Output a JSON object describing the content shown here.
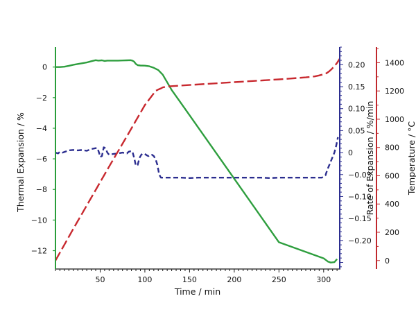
{
  "chart_data": {
    "type": "line",
    "x_axis": {
      "label": "Time / min",
      "range": [
        0,
        318
      ],
      "ticks": [
        50,
        100,
        150,
        200,
        250,
        300
      ],
      "minor_step": 5,
      "color": "#1a1a1a"
    },
    "y_axes": [
      {
        "id": "expansion",
        "label": "Thermal Expansion / %",
        "side": "left",
        "range": [
          -13.2,
          1.3
        ],
        "ticks": [
          0,
          -2,
          -4,
          -6,
          -8,
          -10,
          -12
        ],
        "color": "#2a9d3a"
      },
      {
        "id": "rate",
        "label": "Rate of Expansion / %/min",
        "side": "right",
        "range": [
          -0.265,
          0.24
        ],
        "ticks": [
          0.2,
          0.15,
          0.1,
          0.05,
          0,
          -0.05,
          -0.1,
          -0.15,
          -0.2
        ],
        "tick_labels": [
          "0.20",
          "0.15",
          "0.10",
          "0.05",
          "0",
          "-0.05",
          "-0.10",
          "-0.15",
          "-0.20"
        ],
        "minor_step": 0.01,
        "color": "#2b2d8f"
      },
      {
        "id": "temperature",
        "label": "Temperature / °C",
        "side": "right-outer",
        "range": [
          -60,
          1510
        ],
        "ticks": [
          1400,
          1200,
          1000,
          800,
          600,
          400,
          200,
          0
        ],
        "minor_step": 100,
        "color": "#c0282d"
      }
    ],
    "series": [
      {
        "id": "thermal-expansion",
        "axis": "expansion",
        "style": "solid",
        "color": "#2e9e3e",
        "x": [
          0,
          5,
          10,
          15,
          20,
          25,
          30,
          35,
          40,
          45,
          48,
          52,
          55,
          58,
          60,
          65,
          70,
          75,
          80,
          84,
          86,
          88,
          90,
          92,
          95,
          100,
          105,
          110,
          115,
          120,
          125,
          130,
          140,
          150,
          200,
          250,
          300,
          305,
          308,
          312,
          315
        ],
        "y": [
          0.0,
          0.0,
          0.02,
          0.08,
          0.15,
          0.2,
          0.25,
          0.3,
          0.38,
          0.45,
          0.42,
          0.44,
          0.4,
          0.42,
          0.42,
          0.42,
          0.42,
          0.43,
          0.44,
          0.45,
          0.42,
          0.35,
          0.2,
          0.12,
          0.1,
          0.09,
          0.05,
          -0.05,
          -0.2,
          -0.5,
          -1.0,
          -1.5,
          -2.32,
          -3.15,
          -7.3,
          -11.45,
          -12.5,
          -12.72,
          -12.78,
          -12.75,
          -12.55
        ]
      },
      {
        "id": "rate-of-expansion",
        "axis": "rate",
        "style": "dashed",
        "color": "#2b2d8f",
        "x": [
          0,
          3,
          5,
          8,
          12,
          15,
          20,
          25,
          30,
          35,
          40,
          45,
          47,
          49,
          50,
          52,
          54,
          56,
          58,
          60,
          62,
          65,
          70,
          75,
          80,
          82,
          84,
          86,
          88,
          90,
          92,
          94,
          96,
          98,
          100,
          102,
          104,
          106,
          108,
          110,
          112,
          114,
          116,
          118,
          120,
          130,
          140,
          150,
          160,
          170,
          180,
          190,
          200,
          210,
          220,
          230,
          240,
          250,
          260,
          270,
          280,
          290,
          295,
          298,
          300,
          302,
          304,
          306,
          308,
          310,
          312,
          314,
          316
        ],
        "y": [
          0.0,
          -0.002,
          0.002,
          0.0,
          0.003,
          0.005,
          0.006,
          0.005,
          0.006,
          0.004,
          0.008,
          0.01,
          0.01,
          -0.002,
          -0.01,
          -0.008,
          0.012,
          0.01,
          0.0,
          -0.005,
          -0.004,
          -0.003,
          -0.002,
          0.0,
          -0.002,
          0.002,
          0.003,
          0.003,
          -0.012,
          -0.03,
          -0.028,
          -0.012,
          -0.005,
          -0.002,
          -0.003,
          -0.006,
          -0.008,
          -0.005,
          -0.005,
          -0.008,
          -0.015,
          -0.028,
          -0.05,
          -0.057,
          -0.057,
          -0.057,
          -0.057,
          -0.058,
          -0.057,
          -0.057,
          -0.057,
          -0.057,
          -0.057,
          -0.057,
          -0.057,
          -0.057,
          -0.058,
          -0.057,
          -0.057,
          -0.057,
          -0.057,
          -0.057,
          -0.057,
          -0.057,
          -0.055,
          -0.052,
          -0.04,
          -0.03,
          -0.02,
          -0.01,
          0.0,
          0.015,
          0.035
        ]
      },
      {
        "id": "temperature",
        "axis": "temperature",
        "style": "dashed",
        "color": "#c8292f",
        "x": [
          0,
          20,
          40,
          60,
          80,
          100,
          112,
          115,
          118,
          120,
          125,
          150,
          200,
          250,
          280,
          290,
          295,
          300,
          303,
          306,
          309,
          312,
          315,
          318
        ],
        "y": [
          0,
          225,
          445,
          665,
          880,
          1100,
          1200,
          1210,
          1218,
          1225,
          1232,
          1242,
          1262,
          1282,
          1296,
          1303,
          1310,
          1318,
          1325,
          1338,
          1355,
          1375,
          1398,
          1428
        ]
      }
    ]
  }
}
